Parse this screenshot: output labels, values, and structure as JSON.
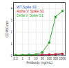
{
  "chart_data": {
    "type": "line",
    "x_label": "Antibody (ng/mL)",
    "y_label": "OD450 nm",
    "log": "x",
    "xlim": [
      0.22,
      1500
    ],
    "ylim": [
      0,
      4.5
    ],
    "xticks": [
      0.3,
      1,
      3,
      10,
      30,
      100,
      300,
      1000
    ],
    "yticks": [
      0,
      1,
      2,
      3,
      4
    ],
    "grid": true,
    "legend": "upper left",
    "x": [
      0.3,
      1,
      3,
      10,
      30,
      100,
      300,
      1000
    ],
    "series": [
      {
        "name": "WT Spike S1",
        "color": "#2255cc",
        "marker": "square",
        "values": [
          0.03,
          0.03,
          0.04,
          0.04,
          0.05,
          0.06,
          0.08,
          0.12
        ]
      },
      {
        "name": "Alpha V. Spike S1",
        "color": "#cc2222",
        "marker": "square",
        "values": [
          0.03,
          0.03,
          0.04,
          0.05,
          0.06,
          0.08,
          0.1,
          0.15
        ]
      },
      {
        "name": "Delta V. Spike S1",
        "color": "#22aa22",
        "marker": "square",
        "values": [
          0.04,
          0.04,
          0.05,
          0.08,
          0.28,
          1.1,
          3.3,
          3.8
        ]
      }
    ]
  }
}
